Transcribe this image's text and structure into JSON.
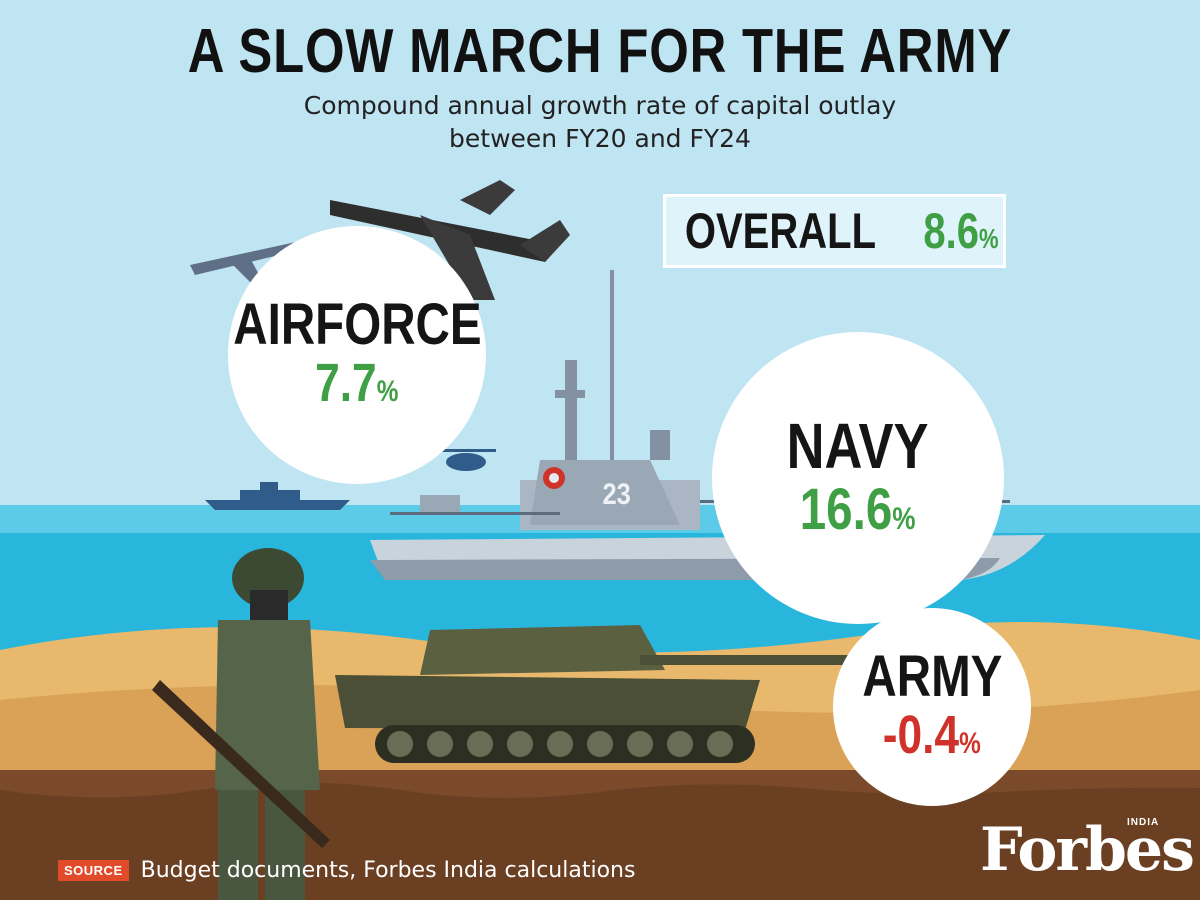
{
  "header": {
    "title": "A SLOW MARCH FOR THE ARMY",
    "subtitle_line1": "Compound annual growth rate of capital outlay",
    "subtitle_line2": "between FY20 and FY24"
  },
  "overall": {
    "label": "OVERALL",
    "value": "8.6",
    "unit": "%"
  },
  "services": [
    {
      "label": "AIRFORCE",
      "value": "7.7",
      "unit": "%"
    },
    {
      "label": "NAVY",
      "value": "16.6",
      "unit": "%"
    },
    {
      "label": "ARMY",
      "value": "-0.4",
      "unit": "%"
    }
  ],
  "ship": {
    "hull_number": "23"
  },
  "footer": {
    "source_tag": "SOURCE",
    "source_text": "Budget documents, Forbes India calculations",
    "brand": "Forbes",
    "brand_sub": "INDIA"
  },
  "colors": {
    "positive": "#3f9f45",
    "negative": "#d0322a",
    "sky": "#bfe4f2",
    "sea": "#29b6dc",
    "sand": "#e8b86c",
    "soil": "#7a4a2a",
    "source_tag": "#e24b2a"
  }
}
